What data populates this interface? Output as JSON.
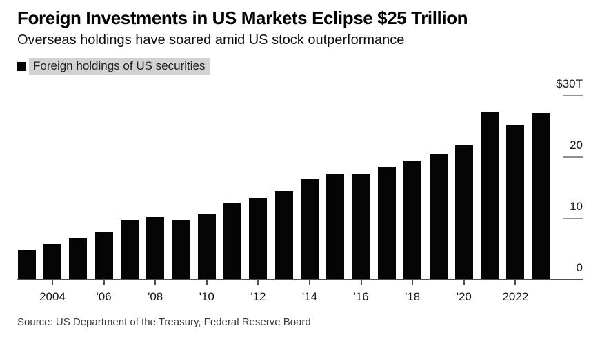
{
  "header": {
    "title": "Foreign Investments in US Markets Eclipse $25 Trillion",
    "subtitle": "Overseas holdings have soared amid US stock outperformance"
  },
  "legend": {
    "label": "Foreign holdings of US securities",
    "swatch_color": "#000000",
    "highlight_color": "#d2d2d2"
  },
  "footer": {
    "source": "Source: US Department of the Treasury, Federal Reserve Board"
  },
  "chart_data": {
    "type": "bar",
    "title": "Foreign Investments in US Markets Eclipse $25 Trillion",
    "subtitle": "Overseas holdings have soared amid US stock outperformance",
    "legend_entries": [
      "Foreign holdings of US securities"
    ],
    "legend_position": "top-left",
    "unit": "trillion USD",
    "categories": [
      2003,
      2004,
      2005,
      2006,
      2007,
      2008,
      2009,
      2010,
      2011,
      2012,
      2013,
      2014,
      2015,
      2016,
      2017,
      2018,
      2019,
      2020,
      2021,
      2022,
      2023
    ],
    "values": [
      4.8,
      5.8,
      6.8,
      7.7,
      9.7,
      10.2,
      9.6,
      10.7,
      12.4,
      13.3,
      14.4,
      16.4,
      17.2,
      17.2,
      18.4,
      19.4,
      20.5,
      21.9,
      27.4,
      25.1,
      27.1
    ],
    "ylim": [
      0,
      30
    ],
    "grid": "right-side tick dashes only",
    "y_ticks": [
      {
        "value": 30,
        "label": "$30T"
      },
      {
        "value": 20,
        "label": "20"
      },
      {
        "value": 10,
        "label": "10"
      },
      {
        "value": 0,
        "label": "0"
      }
    ],
    "x_ticks": [
      {
        "year": 2004,
        "label": "2004"
      },
      {
        "year": 2006,
        "label": "'06"
      },
      {
        "year": 2008,
        "label": "'08"
      },
      {
        "year": 2010,
        "label": "'10"
      },
      {
        "year": 2012,
        "label": "'12"
      },
      {
        "year": 2014,
        "label": "'14"
      },
      {
        "year": 2016,
        "label": "'16"
      },
      {
        "year": 2018,
        "label": "'18"
      },
      {
        "year": 2020,
        "label": "'20"
      },
      {
        "year": 2022,
        "label": "2022"
      }
    ],
    "bar_color": "#050505",
    "axis_color": "#4f4f4f",
    "dash_color": "#8f8f8f",
    "source": "Source: US Department of the Treasury, Federal Reserve Board"
  }
}
